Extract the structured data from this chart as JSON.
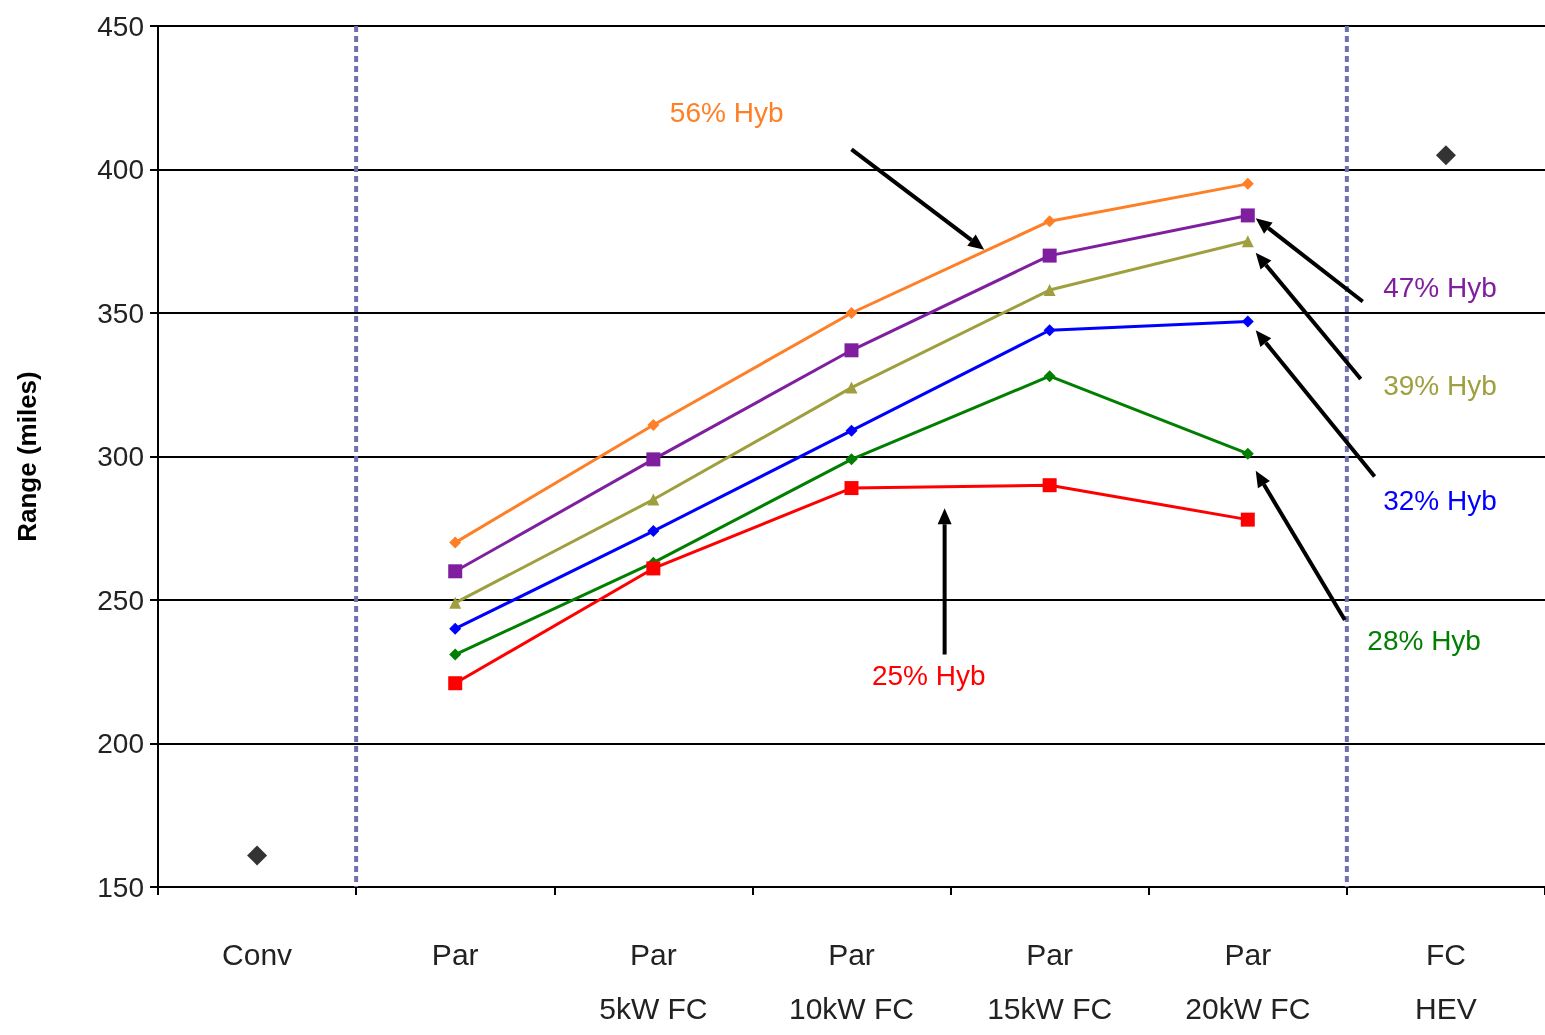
{
  "chart_data": {
    "type": "line",
    "ylabel": "Range (miles)",
    "categories": [
      "Conv",
      "Par",
      "Par\n5kW FC",
      "Par\n10kW FC",
      "Par\n15kW FC",
      "Par\n20kW FC",
      "FC\nHEV"
    ],
    "ylim": [
      150,
      450
    ],
    "yticks": [
      150,
      200,
      250,
      300,
      350,
      400,
      450
    ],
    "grid": "y",
    "legend": false,
    "series": [
      {
        "name": "56% Hyb",
        "color": "#ff7f27",
        "marker": "diamond",
        "values": [
          null,
          270,
          311,
          350,
          382,
          395,
          null
        ]
      },
      {
        "name": "47% Hyb",
        "color": "#7f1f9f",
        "marker": "square",
        "values": [
          null,
          260,
          299,
          337,
          370,
          384,
          null
        ]
      },
      {
        "name": "39% Hyb",
        "color": "#9f9f3f",
        "marker": "triangle",
        "values": [
          null,
          249,
          285,
          324,
          358,
          375,
          null
        ]
      },
      {
        "name": "32% Hyb",
        "color": "#0000ff",
        "marker": "diamond",
        "values": [
          null,
          240,
          274,
          309,
          344,
          347,
          null
        ]
      },
      {
        "name": "28% Hyb",
        "color": "#007f00",
        "marker": "diamond",
        "values": [
          null,
          231,
          263,
          299,
          328,
          301,
          null
        ]
      },
      {
        "name": "25% Hyb",
        "color": "#ff0000",
        "marker": "square",
        "values": [
          null,
          221,
          261,
          289,
          290,
          278,
          null
        ]
      },
      {
        "type": "scatter",
        "color": "#000000",
        "marker": "diamond",
        "values": [
          161,
          null,
          null,
          null,
          null,
          null,
          405
        ]
      }
    ]
  }
}
